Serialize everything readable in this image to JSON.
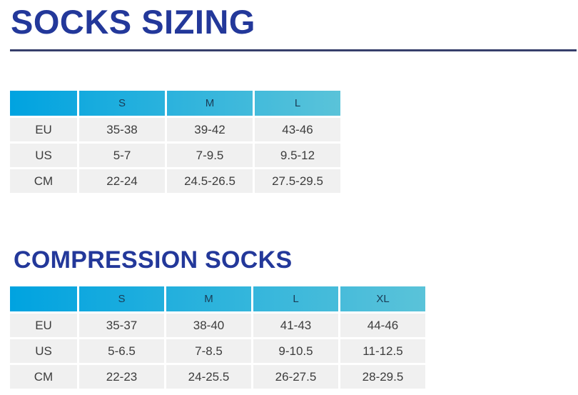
{
  "page": {
    "title": "SOCKS SIZING",
    "section2_title": "COMPRESSION SOCKS"
  },
  "colors": {
    "heading_text": "#23389a",
    "rule": "#363e6b",
    "header_gradient_start": "#00a3e0",
    "header_gradient_end": "#5ac3d9",
    "header_text": "#1a3c56",
    "cell_background": "#f0f0f0",
    "cell_text": "#3c3c3c"
  },
  "tables": [
    {
      "name": "socks-sizing",
      "columns": [
        "",
        "S",
        "M",
        "L"
      ],
      "rows": [
        {
          "label": "EU",
          "values": [
            "35-38",
            "39-42",
            "43-46"
          ]
        },
        {
          "label": "US",
          "values": [
            "5-7",
            "7-9.5",
            "9.5-12"
          ]
        },
        {
          "label": "CM",
          "values": [
            "22-24",
            "24.5-26.5",
            "27.5-29.5"
          ]
        }
      ]
    },
    {
      "name": "compression-socks",
      "columns": [
        "",
        "S",
        "M",
        "L",
        "XL"
      ],
      "rows": [
        {
          "label": "EU",
          "values": [
            "35-37",
            "38-40",
            "41-43",
            "44-46"
          ]
        },
        {
          "label": "US",
          "values": [
            "5-6.5",
            "7-8.5",
            "9-10.5",
            "11-12.5"
          ]
        },
        {
          "label": "CM",
          "values": [
            "22-23",
            "24-25.5",
            "26-27.5",
            "28-29.5"
          ]
        }
      ]
    }
  ]
}
